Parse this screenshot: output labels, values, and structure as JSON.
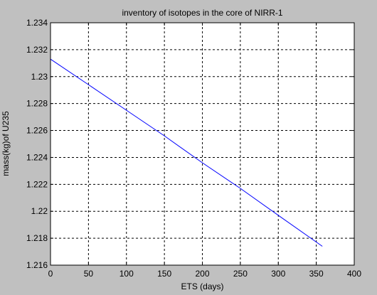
{
  "chart_data": {
    "type": "line",
    "title": "inventory of isotopes in the core of NIRR-1",
    "xlabel": "ETS (days)",
    "ylabel": "mass(kg)of U235",
    "xlim": [
      0,
      400
    ],
    "ylim": [
      1.216,
      1.234
    ],
    "x_ticks": [
      0,
      50,
      100,
      150,
      200,
      250,
      300,
      350,
      400
    ],
    "x_tick_labels": [
      "0",
      "50",
      "100",
      "150",
      "200",
      "250",
      "300",
      "350",
      "400"
    ],
    "y_ticks": [
      1.216,
      1.218,
      1.22,
      1.222,
      1.224,
      1.226,
      1.228,
      1.23,
      1.232,
      1.234
    ],
    "y_tick_labels": [
      "1.216",
      "1.218",
      "1.22",
      "1.222",
      "1.224",
      "1.226",
      "1.228",
      "1.23",
      "1.232",
      "1.234"
    ],
    "grid": true,
    "legend": "none",
    "series": [
      {
        "color": "#0000ff",
        "x": [
          0,
          50,
          100,
          150,
          200,
          250,
          300,
          358
        ],
        "y": [
          1.2313,
          1.2294,
          1.2275,
          1.2256,
          1.2236,
          1.2217,
          1.2197,
          1.2174
        ]
      }
    ]
  }
}
